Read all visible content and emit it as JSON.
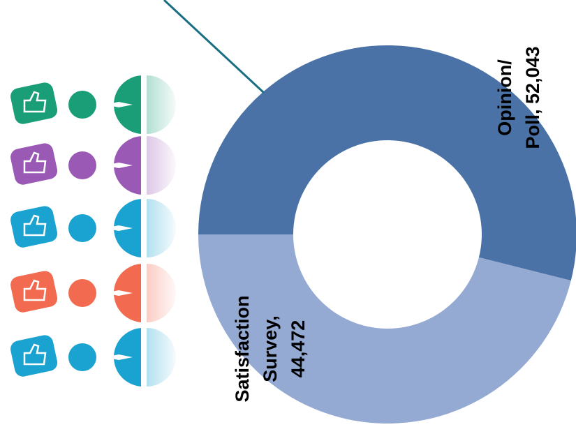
{
  "chart_data": {
    "type": "donut",
    "labels": [
      [
        "Opinion/",
        "Poll, 52,043"
      ],
      [
        "Satisfaction",
        "Survey,",
        "44,472"
      ]
    ],
    "values": [
      52043,
      44472
    ],
    "colors": [
      "#4a72a6",
      "#94aad3"
    ],
    "start_angle": 180,
    "direction": "clockwise"
  }
}
